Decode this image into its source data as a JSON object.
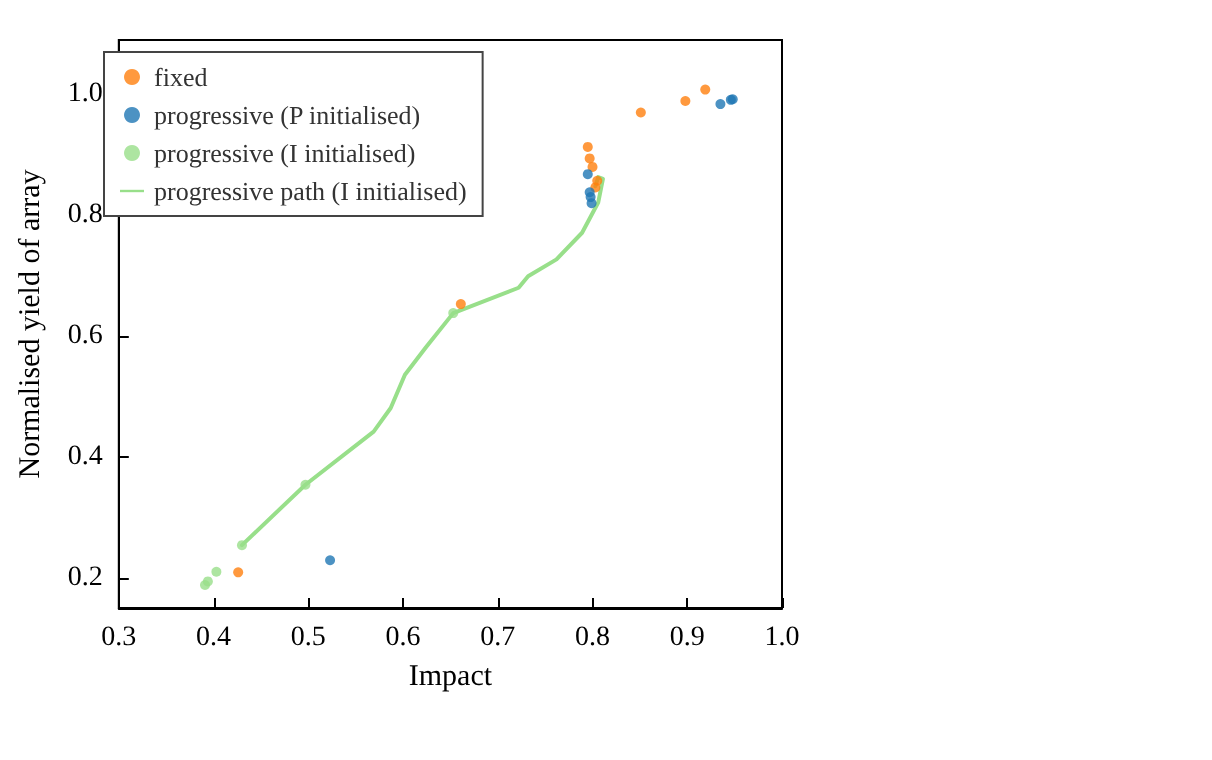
{
  "chart_data": {
    "type": "scatter",
    "xlabel": "Impact",
    "ylabel": "Normalised yield of array",
    "xlim": [
      0.3,
      1.0
    ],
    "ylim": [
      0.15,
      1.09
    ],
    "xticks": [
      0.3,
      0.4,
      0.5,
      0.6,
      0.7,
      0.8,
      0.9,
      {
        "value": 1,
        "label": "1.0"
      }
    ],
    "yticks": [
      0.2,
      0.4,
      0.6,
      0.8,
      {
        "value": 1,
        "label": "1.0"
      }
    ],
    "grid": false,
    "legend": "top left",
    "marker": "circle",
    "series": [
      {
        "name": "fixed",
        "color": "#ff7f0e",
        "x": [
          0.426,
          0.661,
          0.851,
          0.898,
          0.919,
          0.795,
          0.797,
          0.8,
          0.805,
          0.803
        ],
        "values": [
          0.209,
          0.653,
          0.97,
          0.989,
          1.008,
          0.913,
          0.894,
          0.88,
          0.857,
          0.846
        ]
      },
      {
        "name": "progressive (P initialised)",
        "color": "#1f77b4",
        "x": [
          0.523,
          0.935,
          0.946,
          0.948,
          0.795,
          0.797,
          0.798,
          0.799
        ],
        "values": [
          0.229,
          0.984,
          0.991,
          0.992,
          0.868,
          0.838,
          0.83,
          0.82
        ]
      },
      {
        "name": "progressive (I initialised)",
        "color": "#98df8a",
        "x": [
          0.391,
          0.394,
          0.403,
          0.43,
          0.497,
          0.653
        ],
        "values": [
          0.188,
          0.194,
          0.21,
          0.254,
          0.354,
          0.638
        ]
      },
      {
        "name": "progressive path (I initialised)",
        "type": "line",
        "marker": "none",
        "line_style": "solid",
        "color": "#98df8a",
        "x": [
          0.43,
          0.497,
          0.569,
          0.587,
          0.602,
          0.624,
          0.653,
          0.722,
          0.732,
          0.762,
          0.789,
          0.806,
          0.811,
          0.806,
          0.803
        ],
        "values": [
          0.254,
          0.354,
          0.442,
          0.481,
          0.536,
          0.581,
          0.638,
          0.68,
          0.699,
          0.727,
          0.771,
          0.821,
          0.86,
          0.863,
          0.848
        ]
      }
    ]
  }
}
